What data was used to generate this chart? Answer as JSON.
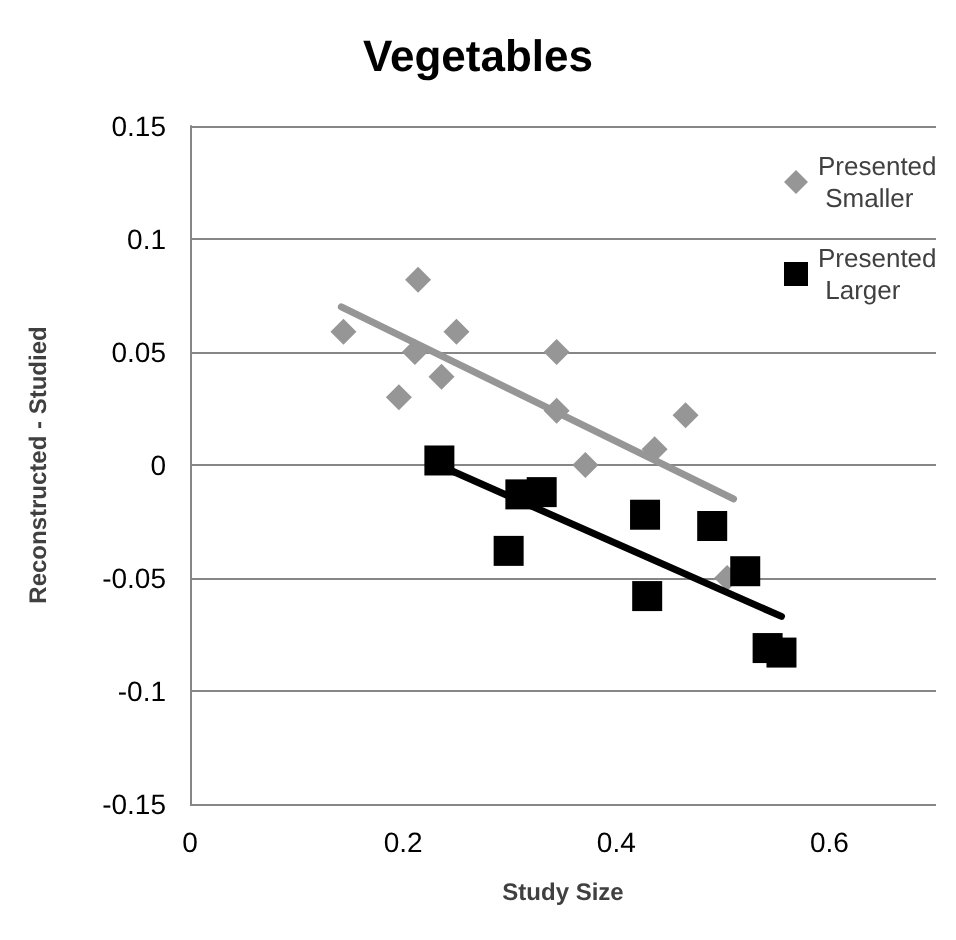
{
  "chart_data": {
    "type": "scatter",
    "title": "Vegetables",
    "xlabel": "Study Size",
    "ylabel": "Reconstructed - Studied",
    "xlim": [
      0,
      0.7
    ],
    "xticks": [
      0,
      0.2,
      0.4,
      0.6
    ],
    "ylim": [
      -0.15,
      0.15
    ],
    "yticks": [
      -0.15,
      -0.1,
      -0.05,
      0,
      0.05,
      0.1,
      0.15
    ],
    "grid": "y",
    "legend": "top right",
    "series": [
      {
        "name": "Presented Smaller",
        "color": "#969696",
        "marker": "diamond",
        "x": [
          0.144,
          0.196,
          0.214,
          0.211,
          0.236,
          0.25,
          0.344,
          0.344,
          0.371,
          0.436,
          0.465,
          0.504
        ],
        "values": [
          0.059,
          0.03,
          0.082,
          0.05,
          0.039,
          0.059,
          0.05,
          0.024,
          0.0,
          0.007,
          0.022,
          -0.05
        ]
      },
      {
        "name": "Presented Larger",
        "color": "#000000",
        "marker": "square",
        "x": [
          0.234,
          0.31,
          0.33,
          0.299,
          0.427,
          0.429,
          0.49,
          0.521,
          0.542,
          0.555
        ],
        "values": [
          0.002,
          -0.013,
          -0.012,
          -0.038,
          -0.022,
          -0.058,
          -0.027,
          -0.047,
          -0.081,
          -0.083
        ]
      },
      {
        "type": "line",
        "color": "#969696",
        "marker": "none",
        "x": [
          0.142,
          0.51
        ],
        "values": [
          0.07,
          -0.015
        ]
      },
      {
        "type": "line",
        "color": "#000000",
        "marker": "none",
        "x": [
          0.238,
          0.555
        ],
        "values": [
          -0.001,
          -0.067
        ]
      }
    ]
  }
}
